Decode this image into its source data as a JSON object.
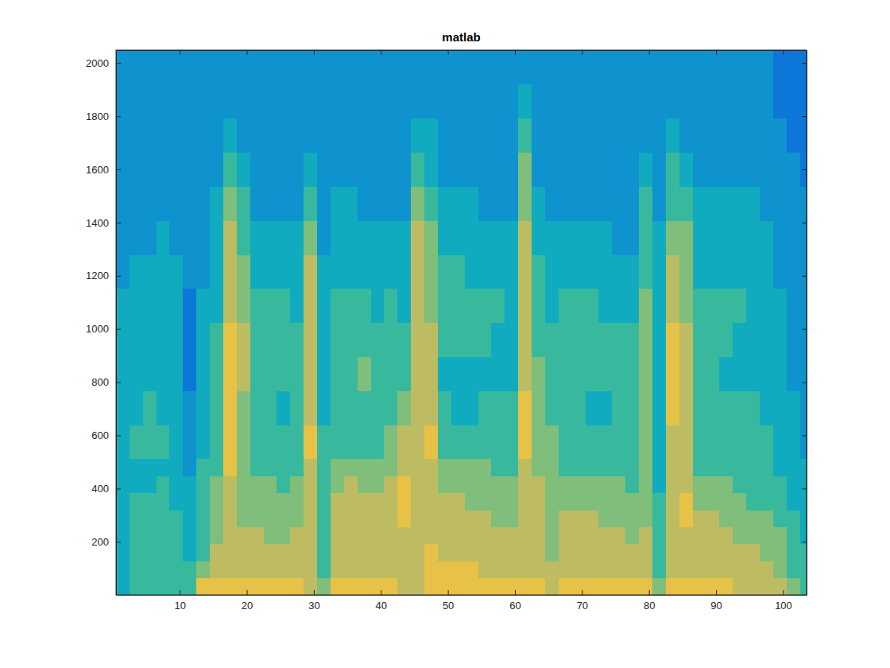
{
  "chart_data": {
    "type": "heatmap",
    "title": "matlab",
    "xlim": [
      0.5,
      103.5
    ],
    "ylim": [
      0.5,
      2048.5
    ],
    "xticks": [
      10,
      20,
      30,
      40,
      50,
      60,
      70,
      80,
      90,
      100
    ],
    "yticks": [
      200,
      400,
      600,
      800,
      1000,
      1200,
      1400,
      1600,
      1800,
      2000
    ],
    "zlim": [
      0,
      10
    ],
    "x_edges": [
      0.5,
      2.5,
      4.5,
      6.5,
      8.5,
      10.5,
      12.5,
      14.5,
      16.5,
      18.5,
      20.5,
      22.5,
      24.5,
      26.5,
      28.5,
      30.5,
      32.5,
      34.5,
      36.5,
      38.5,
      40.5,
      42.5,
      44.5,
      46.5,
      48.5,
      50.5,
      52.5,
      54.5,
      56.5,
      58.5,
      60.5,
      62.5,
      64.5,
      66.5,
      68.5,
      70.5,
      72.5,
      74.5,
      76.5,
      78.5,
      80.5,
      82.5,
      84.5,
      86.5,
      88.5,
      90.5,
      92.5,
      94.5,
      96.5,
      98.5,
      100.5,
      102.5,
      103.5
    ],
    "y_edges": [
      0.5,
      64,
      128,
      192,
      256,
      320,
      384,
      448,
      512,
      640,
      768,
      896,
      1024,
      1152,
      1280,
      1408,
      1536,
      1664,
      1792,
      1920,
      2048.5
    ],
    "z": [
      [
        4,
        4,
        4,
        4,
        4,
        4,
        4,
        4,
        4,
        4,
        4,
        4,
        4,
        3,
        3,
        3,
        3,
        3,
        3,
        3
      ],
      [
        5,
        5,
        5,
        5,
        5,
        5,
        4,
        4,
        5,
        4,
        4,
        4,
        4,
        4,
        3,
        3,
        3,
        3,
        3,
        3
      ],
      [
        5,
        5,
        5,
        5,
        5,
        5,
        4,
        4,
        5,
        5,
        4,
        4,
        4,
        4,
        3,
        3,
        3,
        3,
        3,
        3
      ],
      [
        5,
        5,
        5,
        5,
        5,
        5,
        5,
        4,
        5,
        4,
        4,
        4,
        4,
        4,
        4,
        3,
        3,
        3,
        3,
        3
      ],
      [
        5,
        5,
        5,
        5,
        5,
        4,
        4,
        4,
        4,
        4,
        4,
        4,
        4,
        4,
        3,
        3,
        3,
        3,
        3,
        3
      ],
      [
        5,
        5,
        4,
        4,
        4,
        4,
        4,
        3,
        3,
        3,
        2,
        2,
        2,
        3,
        3,
        3,
        3,
        3,
        3,
        3
      ],
      [
        8,
        6,
        5,
        5,
        5,
        5,
        5,
        5,
        4,
        4,
        4,
        4,
        4,
        3,
        3,
        3,
        3,
        3,
        3,
        3
      ],
      [
        8,
        7,
        7,
        6,
        6,
        6,
        6,
        5,
        5,
        5,
        5,
        5,
        4,
        4,
        4,
        4,
        3,
        3,
        3,
        3
      ],
      [
        8,
        7,
        7,
        7,
        7,
        7,
        7,
        8,
        8,
        8,
        8,
        8,
        7,
        7,
        7,
        6,
        5,
        4,
        3,
        3
      ],
      [
        8,
        7,
        7,
        7,
        6,
        6,
        6,
        6,
        6,
        6,
        7,
        7,
        6,
        6,
        5,
        5,
        4,
        3,
        3,
        3
      ],
      [
        8,
        7,
        7,
        7,
        6,
        6,
        6,
        5,
        5,
        5,
        5,
        5,
        5,
        4,
        4,
        3,
        3,
        3,
        3,
        3
      ],
      [
        8,
        7,
        7,
        6,
        6,
        6,
        6,
        5,
        5,
        5,
        5,
        5,
        5,
        4,
        4,
        3,
        3,
        3,
        3,
        3
      ],
      [
        8,
        7,
        7,
        6,
        6,
        6,
        5,
        5,
        5,
        4,
        5,
        5,
        5,
        4,
        4,
        3,
        3,
        3,
        3,
        3
      ],
      [
        8,
        7,
        7,
        7,
        6,
        6,
        6,
        5,
        5,
        5,
        5,
        5,
        4,
        4,
        4,
        3,
        3,
        3,
        3,
        3
      ],
      [
        7,
        7,
        7,
        7,
        7,
        7,
        7,
        7,
        8,
        7,
        7,
        7,
        7,
        7,
        6,
        5,
        4,
        3,
        3,
        3
      ],
      [
        6,
        5,
        5,
        5,
        5,
        5,
        5,
        5,
        5,
        4,
        4,
        4,
        4,
        4,
        3,
        3,
        3,
        3,
        3,
        3
      ],
      [
        8,
        7,
        7,
        7,
        7,
        7,
        6,
        6,
        5,
        5,
        5,
        5,
        5,
        4,
        4,
        4,
        3,
        3,
        3,
        3
      ],
      [
        8,
        7,
        7,
        7,
        7,
        7,
        7,
        6,
        5,
        5,
        5,
        5,
        5,
        4,
        4,
        4,
        3,
        3,
        3,
        3
      ],
      [
        8,
        7,
        7,
        7,
        7,
        7,
        6,
        6,
        5,
        5,
        6,
        5,
        5,
        4,
        4,
        3,
        3,
        3,
        3,
        3
      ],
      [
        8,
        7,
        7,
        7,
        7,
        7,
        6,
        6,
        5,
        5,
        5,
        5,
        4,
        4,
        4,
        3,
        3,
        3,
        3,
        3
      ],
      [
        8,
        7,
        7,
        7,
        7,
        7,
        7,
        6,
        6,
        5,
        5,
        5,
        5,
        4,
        4,
        3,
        3,
        3,
        3,
        3
      ],
      [
        7,
        7,
        7,
        7,
        8,
        8,
        8,
        7,
        7,
        6,
        5,
        5,
        4,
        4,
        4,
        3,
        3,
        3,
        3,
        3
      ],
      [
        7,
        7,
        7,
        7,
        7,
        7,
        7,
        7,
        7,
        7,
        7,
        7,
        7,
        7,
        7,
        6,
        5,
        4,
        3,
        3
      ],
      [
        8,
        8,
        8,
        7,
        7,
        7,
        7,
        7,
        8,
        7,
        7,
        7,
        6,
        6,
        6,
        5,
        4,
        4,
        3,
        3
      ],
      [
        8,
        8,
        7,
        7,
        7,
        7,
        6,
        6,
        5,
        5,
        4,
        5,
        5,
        5,
        4,
        4,
        3,
        3,
        3,
        3
      ],
      [
        8,
        8,
        7,
        7,
        7,
        7,
        6,
        6,
        5,
        4,
        4,
        5,
        5,
        5,
        4,
        4,
        3,
        3,
        3,
        3
      ],
      [
        8,
        8,
        7,
        7,
        7,
        6,
        6,
        6,
        5,
        4,
        4,
        5,
        5,
        4,
        4,
        4,
        3,
        3,
        3,
        3
      ],
      [
        8,
        7,
        7,
        7,
        7,
        6,
        6,
        6,
        5,
        5,
        4,
        5,
        5,
        4,
        4,
        3,
        3,
        3,
        3,
        3
      ],
      [
        8,
        7,
        7,
        7,
        6,
        6,
        6,
        5,
        5,
        5,
        4,
        4,
        5,
        4,
        4,
        3,
        3,
        3,
        3,
        3
      ],
      [
        8,
        7,
        7,
        7,
        6,
        6,
        6,
        5,
        5,
        5,
        4,
        4,
        4,
        4,
        4,
        3,
        3,
        3,
        3,
        3
      ],
      [
        8,
        7,
        7,
        7,
        7,
        7,
        7,
        7,
        8,
        8,
        7,
        7,
        7,
        7,
        7,
        6,
        6,
        5,
        4,
        3
      ],
      [
        8,
        7,
        7,
        7,
        7,
        7,
        7,
        6,
        6,
        6,
        6,
        5,
        5,
        5,
        4,
        4,
        3,
        3,
        3,
        3
      ],
      [
        7,
        7,
        6,
        6,
        6,
        6,
        6,
        6,
        6,
        5,
        5,
        5,
        4,
        4,
        4,
        3,
        3,
        3,
        3,
        3
      ],
      [
        8,
        7,
        7,
        7,
        7,
        6,
        6,
        5,
        5,
        5,
        5,
        5,
        5,
        4,
        4,
        3,
        3,
        3,
        3,
        3
      ],
      [
        8,
        7,
        7,
        7,
        7,
        6,
        6,
        5,
        5,
        5,
        5,
        5,
        5,
        4,
        4,
        3,
        3,
        3,
        3,
        3
      ],
      [
        8,
        7,
        7,
        7,
        7,
        6,
        6,
        5,
        5,
        4,
        5,
        5,
        5,
        4,
        4,
        3,
        3,
        3,
        3,
        3
      ],
      [
        8,
        7,
        7,
        7,
        6,
        6,
        6,
        5,
        5,
        4,
        5,
        5,
        4,
        4,
        4,
        3,
        3,
        3,
        3,
        3
      ],
      [
        8,
        7,
        7,
        7,
        6,
        6,
        6,
        5,
        5,
        5,
        5,
        5,
        4,
        4,
        3,
        3,
        3,
        3,
        3,
        3
      ],
      [
        8,
        7,
        7,
        6,
        6,
        6,
        5,
        5,
        5,
        5,
        5,
        5,
        4,
        4,
        3,
        3,
        3,
        3,
        3,
        3
      ],
      [
        8,
        7,
        7,
        7,
        6,
        6,
        6,
        6,
        6,
        6,
        6,
        6,
        6,
        5,
        5,
        5,
        4,
        3,
        3,
        3
      ],
      [
        6,
        5,
        5,
        5,
        5,
        5,
        4,
        4,
        4,
        4,
        4,
        4,
        4,
        4,
        4,
        3,
        3,
        3,
        3,
        3
      ],
      [
        8,
        7,
        7,
        7,
        7,
        7,
        7,
        7,
        7,
        8,
        8,
        8,
        7,
        7,
        6,
        5,
        5,
        4,
        3,
        3
      ],
      [
        8,
        7,
        7,
        7,
        8,
        8,
        7,
        7,
        7,
        7,
        7,
        7,
        6,
        6,
        6,
        5,
        4,
        3,
        3,
        3
      ],
      [
        8,
        7,
        7,
        7,
        7,
        6,
        6,
        5,
        5,
        5,
        5,
        5,
        5,
        4,
        4,
        4,
        3,
        3,
        3,
        3
      ],
      [
        8,
        7,
        7,
        7,
        7,
        6,
        6,
        5,
        5,
        5,
        5,
        5,
        5,
        4,
        4,
        4,
        3,
        3,
        3,
        3
      ],
      [
        8,
        7,
        7,
        7,
        6,
        6,
        6,
        5,
        5,
        5,
        4,
        5,
        5,
        4,
        4,
        4,
        3,
        3,
        3,
        3
      ],
      [
        7,
        7,
        7,
        6,
        6,
        6,
        5,
        5,
        5,
        5,
        4,
        4,
        5,
        4,
        4,
        4,
        3,
        3,
        3,
        3
      ],
      [
        7,
        7,
        7,
        6,
        6,
        5,
        5,
        5,
        5,
        5,
        4,
        4,
        4,
        4,
        4,
        4,
        3,
        3,
        3,
        3
      ],
      [
        7,
        7,
        6,
        6,
        6,
        5,
        5,
        5,
        5,
        4,
        4,
        4,
        4,
        4,
        4,
        3,
        3,
        3,
        3,
        3
      ],
      [
        7,
        6,
        6,
        6,
        5,
        5,
        5,
        4,
        4,
        4,
        4,
        4,
        4,
        3,
        3,
        3,
        3,
        3,
        2,
        2
      ],
      [
        6,
        5,
        5,
        5,
        5,
        4,
        4,
        4,
        4,
        4,
        3,
        3,
        3,
        3,
        3,
        3,
        3,
        2,
        2,
        2
      ],
      [
        5,
        5,
        5,
        4,
        4,
        4,
        4,
        4,
        3,
        3,
        3,
        3,
        3,
        3,
        3,
        3,
        2,
        2,
        2,
        2
      ]
    ]
  }
}
